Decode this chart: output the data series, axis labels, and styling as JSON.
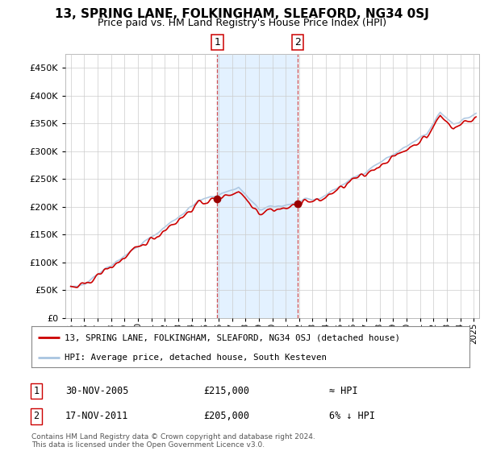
{
  "title": "13, SPRING LANE, FOLKINGHAM, SLEAFORD, NG34 0SJ",
  "subtitle": "Price paid vs. HM Land Registry's House Price Index (HPI)",
  "legend_line1": "13, SPRING LANE, FOLKINGHAM, SLEAFORD, NG34 0SJ (detached house)",
  "legend_line2": "HPI: Average price, detached house, South Kesteven",
  "annotation1_label": "1",
  "annotation1_date": "30-NOV-2005",
  "annotation1_price": "£215,000",
  "annotation1_note": "≈ HPI",
  "annotation2_label": "2",
  "annotation2_date": "17-NOV-2011",
  "annotation2_price": "£205,000",
  "annotation2_note": "6% ↓ HPI",
  "footer": "Contains HM Land Registry data © Crown copyright and database right 2024.\nThis data is licensed under the Open Government Licence v3.0.",
  "sale1_year": 2005.917,
  "sale1_value": 215000,
  "sale2_year": 2011.875,
  "sale2_value": 205000,
  "hpi_color": "#a8c4e0",
  "price_color": "#cc0000",
  "sale_marker_color": "#990000",
  "shaded_color": "#ddeeff",
  "ylim_min": 0,
  "ylim_max": 475000,
  "background_color": "#ffffff",
  "grid_color": "#cccccc",
  "title_fontsize": 11,
  "subtitle_fontsize": 9
}
